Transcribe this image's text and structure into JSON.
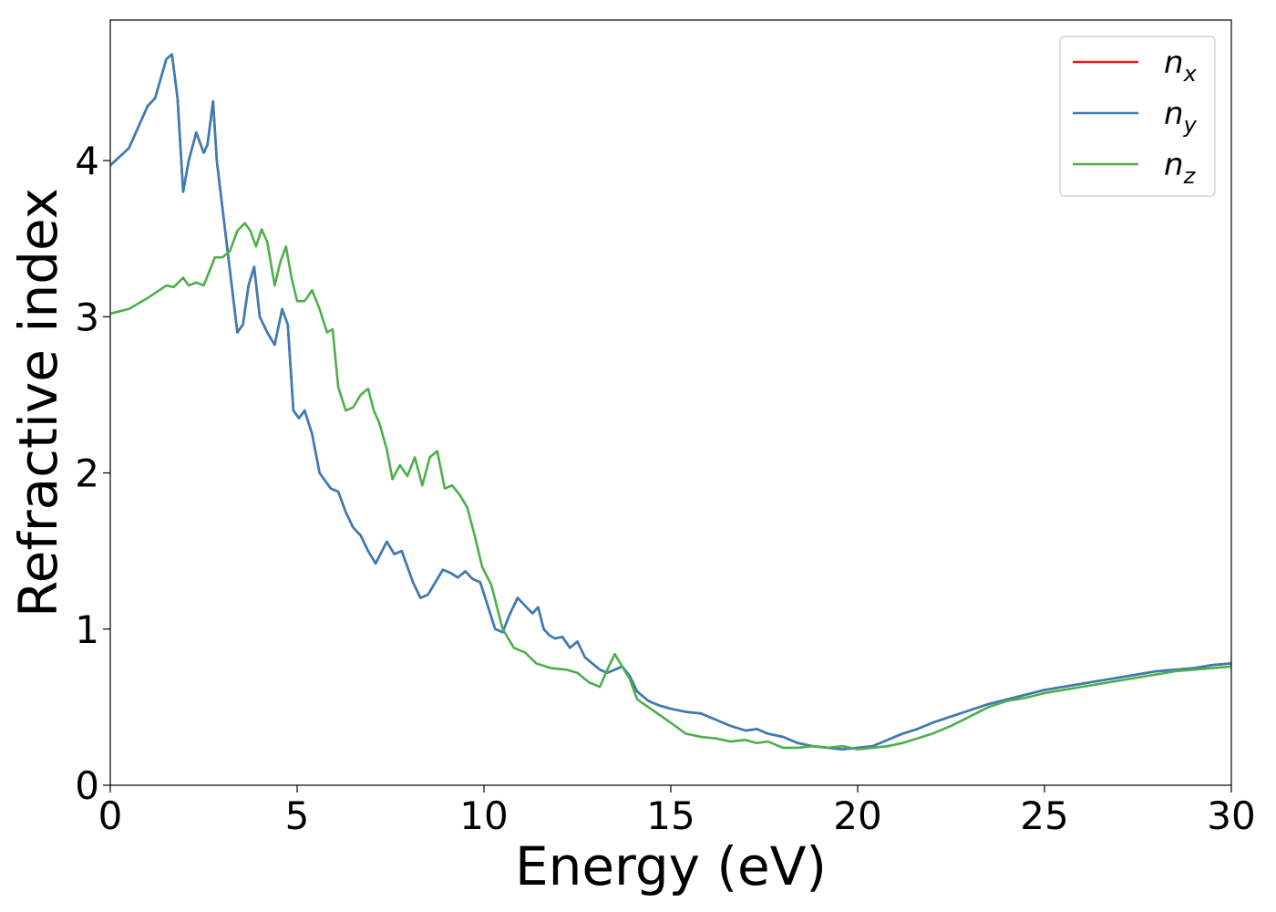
{
  "chart_data": {
    "type": "line",
    "title": "",
    "xlabel": "Energy (eV)",
    "ylabel": "Refractive index",
    "xlim": [
      0,
      30
    ],
    "ylim": [
      0,
      4.9
    ],
    "xticks": [
      0,
      5,
      10,
      15,
      20,
      25,
      30
    ],
    "xtick_labels": [
      "0",
      "5",
      "10",
      "15",
      "20",
      "25",
      "30"
    ],
    "yticks": [
      0,
      1,
      2,
      3,
      4
    ],
    "ytick_labels": [
      "0",
      "1",
      "2",
      "3",
      "4"
    ],
    "legend_position": "top-right",
    "colors": {
      "n_x": "#e41a1c",
      "n_y": "#377eb8",
      "n_z": "#4daf4a"
    },
    "series": [
      {
        "name": "n_x",
        "legend_base": "n",
        "legend_sub": "x",
        "color": "#e41a1c",
        "x": [
          0,
          0.5,
          1.0,
          1.2,
          1.5,
          1.65,
          1.8,
          1.95,
          2.1,
          2.3,
          2.5,
          2.6,
          2.75,
          2.85,
          3.0,
          3.2,
          3.4,
          3.55,
          3.7,
          3.85,
          4.0,
          4.2,
          4.4,
          4.6,
          4.75,
          4.9,
          5.05,
          5.2,
          5.4,
          5.6,
          5.75,
          5.9,
          6.1,
          6.3,
          6.5,
          6.7,
          6.9,
          7.1,
          7.4,
          7.6,
          7.8,
          7.95,
          8.1,
          8.3,
          8.5,
          8.7,
          8.9,
          9.1,
          9.3,
          9.5,
          9.7,
          9.9,
          10.1,
          10.3,
          10.5,
          10.7,
          10.9,
          11.1,
          11.3,
          11.45,
          11.6,
          11.75,
          11.9,
          12.1,
          12.3,
          12.5,
          12.7,
          12.9,
          13.1,
          13.3,
          13.5,
          13.7,
          13.9,
          14.1,
          14.4,
          14.7,
          15.0,
          15.4,
          15.8,
          16.2,
          16.6,
          17.0,
          17.3,
          17.6,
          18.0,
          18.4,
          18.8,
          19.2,
          19.6,
          20.0,
          20.4,
          20.8,
          21.2,
          21.6,
          22.0,
          22.5,
          23.0,
          23.5,
          24.0,
          24.5,
          25.0,
          25.5,
          26.0,
          26.5,
          27.0,
          27.5,
          28.0,
          28.5,
          29.0,
          29.5,
          30.0
        ],
        "y": [
          3.97,
          4.08,
          4.35,
          4.4,
          4.65,
          4.68,
          4.4,
          3.8,
          4.0,
          4.18,
          4.05,
          4.1,
          4.38,
          4.0,
          3.7,
          3.3,
          2.9,
          2.95,
          3.2,
          3.32,
          3.0,
          2.9,
          2.82,
          3.05,
          2.95,
          2.4,
          2.35,
          2.4,
          2.25,
          2.0,
          1.95,
          1.9,
          1.88,
          1.75,
          1.65,
          1.6,
          1.5,
          1.42,
          1.56,
          1.48,
          1.5,
          1.4,
          1.3,
          1.2,
          1.22,
          1.3,
          1.38,
          1.36,
          1.33,
          1.37,
          1.32,
          1.3,
          1.15,
          1.0,
          0.98,
          1.1,
          1.2,
          1.15,
          1.1,
          1.14,
          1.0,
          0.96,
          0.94,
          0.95,
          0.88,
          0.92,
          0.82,
          0.78,
          0.74,
          0.72,
          0.74,
          0.76,
          0.7,
          0.6,
          0.54,
          0.51,
          0.49,
          0.47,
          0.46,
          0.42,
          0.38,
          0.35,
          0.36,
          0.33,
          0.31,
          0.27,
          0.25,
          0.24,
          0.23,
          0.24,
          0.25,
          0.29,
          0.33,
          0.36,
          0.4,
          0.44,
          0.48,
          0.52,
          0.55,
          0.58,
          0.61,
          0.63,
          0.65,
          0.67,
          0.69,
          0.71,
          0.73,
          0.74,
          0.75,
          0.77,
          0.78
        ]
      },
      {
        "name": "n_y",
        "legend_base": "n",
        "legend_sub": "y",
        "color": "#377eb8",
        "x": [
          0,
          0.5,
          1.0,
          1.2,
          1.5,
          1.65,
          1.8,
          1.95,
          2.1,
          2.3,
          2.5,
          2.6,
          2.75,
          2.85,
          3.0,
          3.2,
          3.4,
          3.55,
          3.7,
          3.85,
          4.0,
          4.2,
          4.4,
          4.6,
          4.75,
          4.9,
          5.05,
          5.2,
          5.4,
          5.6,
          5.75,
          5.9,
          6.1,
          6.3,
          6.5,
          6.7,
          6.9,
          7.1,
          7.4,
          7.6,
          7.8,
          7.95,
          8.1,
          8.3,
          8.5,
          8.7,
          8.9,
          9.1,
          9.3,
          9.5,
          9.7,
          9.9,
          10.1,
          10.3,
          10.5,
          10.7,
          10.9,
          11.1,
          11.3,
          11.45,
          11.6,
          11.75,
          11.9,
          12.1,
          12.3,
          12.5,
          12.7,
          12.9,
          13.1,
          13.3,
          13.5,
          13.7,
          13.9,
          14.1,
          14.4,
          14.7,
          15.0,
          15.4,
          15.8,
          16.2,
          16.6,
          17.0,
          17.3,
          17.6,
          18.0,
          18.4,
          18.8,
          19.2,
          19.6,
          20.0,
          20.4,
          20.8,
          21.2,
          21.6,
          22.0,
          22.5,
          23.0,
          23.5,
          24.0,
          24.5,
          25.0,
          25.5,
          26.0,
          26.5,
          27.0,
          27.5,
          28.0,
          28.5,
          29.0,
          29.5,
          30.0
        ],
        "y": [
          3.97,
          4.08,
          4.35,
          4.4,
          4.65,
          4.68,
          4.4,
          3.8,
          4.0,
          4.18,
          4.05,
          4.1,
          4.38,
          4.0,
          3.7,
          3.3,
          2.9,
          2.95,
          3.2,
          3.32,
          3.0,
          2.9,
          2.82,
          3.05,
          2.95,
          2.4,
          2.35,
          2.4,
          2.25,
          2.0,
          1.95,
          1.9,
          1.88,
          1.75,
          1.65,
          1.6,
          1.5,
          1.42,
          1.56,
          1.48,
          1.5,
          1.4,
          1.3,
          1.2,
          1.22,
          1.3,
          1.38,
          1.36,
          1.33,
          1.37,
          1.32,
          1.3,
          1.15,
          1.0,
          0.98,
          1.1,
          1.2,
          1.15,
          1.1,
          1.14,
          1.0,
          0.96,
          0.94,
          0.95,
          0.88,
          0.92,
          0.82,
          0.78,
          0.74,
          0.72,
          0.74,
          0.76,
          0.7,
          0.6,
          0.54,
          0.51,
          0.49,
          0.47,
          0.46,
          0.42,
          0.38,
          0.35,
          0.36,
          0.33,
          0.31,
          0.27,
          0.25,
          0.24,
          0.23,
          0.24,
          0.25,
          0.29,
          0.33,
          0.36,
          0.4,
          0.44,
          0.48,
          0.52,
          0.55,
          0.58,
          0.61,
          0.63,
          0.65,
          0.67,
          0.69,
          0.71,
          0.73,
          0.74,
          0.75,
          0.77,
          0.78
        ]
      },
      {
        "name": "n_z",
        "legend_base": "n",
        "legend_sub": "z",
        "color": "#4daf4a",
        "x": [
          0,
          0.5,
          1.0,
          1.5,
          1.7,
          1.95,
          2.1,
          2.3,
          2.5,
          2.8,
          3.0,
          3.2,
          3.4,
          3.6,
          3.75,
          3.9,
          4.05,
          4.2,
          4.4,
          4.55,
          4.7,
          4.85,
          5.0,
          5.2,
          5.4,
          5.6,
          5.8,
          5.95,
          6.1,
          6.3,
          6.5,
          6.7,
          6.9,
          7.05,
          7.2,
          7.4,
          7.55,
          7.75,
          7.95,
          8.15,
          8.35,
          8.55,
          8.75,
          8.95,
          9.15,
          9.35,
          9.55,
          9.75,
          9.95,
          10.2,
          10.5,
          10.8,
          11.1,
          11.4,
          11.8,
          12.2,
          12.5,
          12.8,
          13.1,
          13.3,
          13.5,
          13.7,
          13.9,
          14.1,
          14.4,
          14.7,
          15.0,
          15.4,
          15.8,
          16.2,
          16.6,
          17.0,
          17.3,
          17.6,
          18.0,
          18.4,
          18.8,
          19.2,
          19.6,
          20.0,
          20.4,
          20.8,
          21.2,
          21.6,
          22.0,
          22.5,
          23.0,
          23.5,
          24.0,
          24.5,
          25.0,
          25.5,
          26.0,
          26.5,
          27.0,
          27.5,
          28.0,
          28.5,
          29.0,
          29.5,
          30.0
        ],
        "y": [
          3.02,
          3.05,
          3.12,
          3.2,
          3.19,
          3.25,
          3.2,
          3.22,
          3.2,
          3.38,
          3.38,
          3.42,
          3.55,
          3.6,
          3.55,
          3.45,
          3.56,
          3.48,
          3.2,
          3.35,
          3.45,
          3.25,
          3.1,
          3.1,
          3.17,
          3.05,
          2.9,
          2.92,
          2.55,
          2.4,
          2.42,
          2.5,
          2.54,
          2.4,
          2.32,
          2.15,
          1.96,
          2.05,
          1.98,
          2.1,
          1.92,
          2.1,
          2.14,
          1.9,
          1.92,
          1.86,
          1.78,
          1.6,
          1.4,
          1.28,
          1.0,
          0.88,
          0.85,
          0.78,
          0.75,
          0.74,
          0.72,
          0.66,
          0.63,
          0.74,
          0.84,
          0.76,
          0.68,
          0.55,
          0.5,
          0.45,
          0.4,
          0.33,
          0.31,
          0.3,
          0.28,
          0.29,
          0.27,
          0.28,
          0.24,
          0.24,
          0.25,
          0.24,
          0.25,
          0.23,
          0.24,
          0.25,
          0.27,
          0.3,
          0.33,
          0.38,
          0.44,
          0.5,
          0.54,
          0.56,
          0.59,
          0.61,
          0.63,
          0.65,
          0.67,
          0.69,
          0.71,
          0.73,
          0.74,
          0.75,
          0.76
        ]
      }
    ]
  }
}
